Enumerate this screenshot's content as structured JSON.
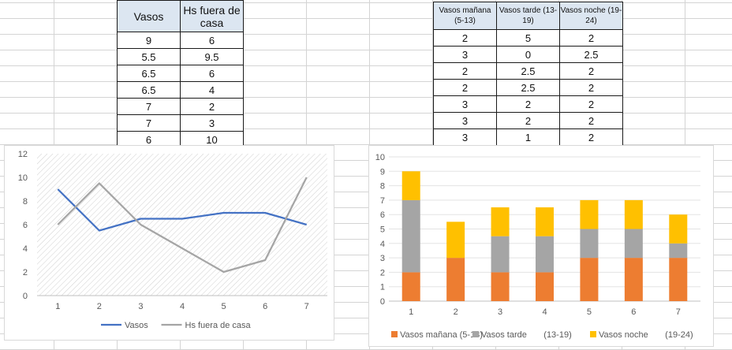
{
  "table1": {
    "headers": [
      "Vasos",
      "Hs fuera de casa"
    ],
    "rows": [
      [
        "9",
        "6"
      ],
      [
        "5.5",
        "9.5"
      ],
      [
        "6.5",
        "6"
      ],
      [
        "6.5",
        "4"
      ],
      [
        "7",
        "2"
      ],
      [
        "7",
        "3"
      ],
      [
        "6",
        "10"
      ]
    ]
  },
  "table2": {
    "headers": [
      "Vasos mañana (5-13)",
      "Vasos tarde (13-19)",
      "Vasos noche (19-24)"
    ],
    "rows": [
      [
        "2",
        "5",
        "2"
      ],
      [
        "3",
        "0",
        "2.5"
      ],
      [
        "2",
        "2.5",
        "2"
      ],
      [
        "2",
        "2.5",
        "2"
      ],
      [
        "3",
        "2",
        "2"
      ],
      [
        "3",
        "2",
        "2"
      ],
      [
        "3",
        "1",
        "2"
      ]
    ]
  },
  "chart_data": [
    {
      "type": "line",
      "categories": [
        "1",
        "2",
        "3",
        "4",
        "5",
        "6",
        "7"
      ],
      "series": [
        {
          "name": "Vasos",
          "values": [
            9,
            5.5,
            6.5,
            6.5,
            7,
            7,
            6
          ],
          "color": "#4472c4"
        },
        {
          "name": "Hs fuera de casa",
          "values": [
            6,
            9.5,
            6,
            4,
            2,
            3,
            10
          ],
          "color": "#a5a5a5"
        }
      ],
      "ylim": [
        0,
        12
      ],
      "yticks": [
        0,
        2,
        4,
        6,
        8,
        10,
        12
      ],
      "grid": false,
      "legend": "bottom"
    },
    {
      "type": "bar",
      "stacked": true,
      "categories": [
        "1",
        "2",
        "3",
        "4",
        "5",
        "6",
        "7"
      ],
      "series": [
        {
          "name": "Vasos mañana (5-13)",
          "values": [
            2,
            3,
            2,
            2,
            3,
            3,
            3
          ],
          "color": "#ed7d31"
        },
        {
          "name": "Vasos tarde       (13-19)",
          "values": [
            5,
            0,
            2.5,
            2.5,
            2,
            2,
            1
          ],
          "color": "#a5a5a5"
        },
        {
          "name": "Vasos noche       (19-24)",
          "values": [
            2,
            2.5,
            2,
            2,
            2,
            2,
            2
          ],
          "color": "#ffc000"
        }
      ],
      "ylim": [
        0,
        10
      ],
      "yticks": [
        0,
        1,
        2,
        3,
        4,
        5,
        6,
        7,
        8,
        9,
        10
      ],
      "grid": true,
      "legend": "bottom"
    }
  ]
}
